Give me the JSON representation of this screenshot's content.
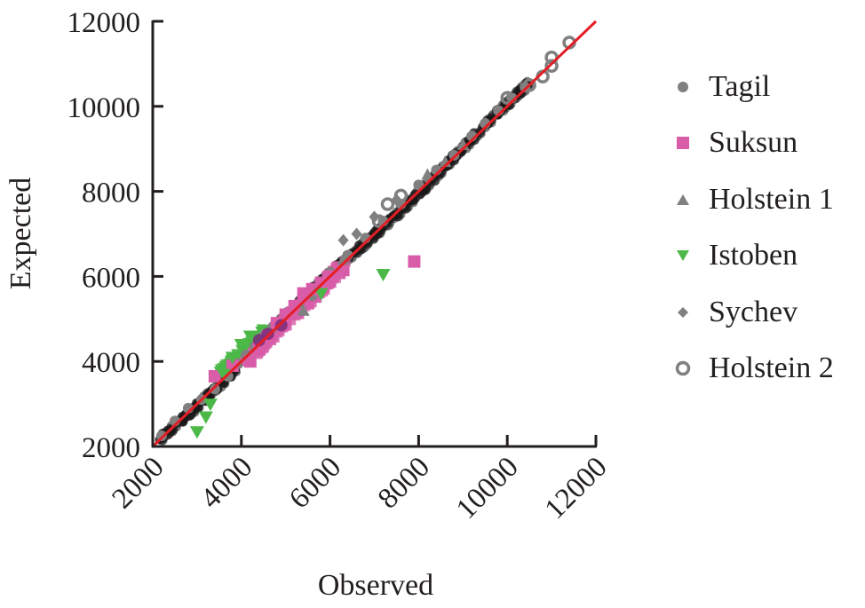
{
  "chart_data": {
    "type": "scatter",
    "title": "",
    "xlabel": "Observed",
    "ylabel": "Expected",
    "xlim": [
      2000,
      12000
    ],
    "ylim": [
      2000,
      12000
    ],
    "x_ticks": [
      "2000",
      "4000",
      "6000",
      "8000",
      "10000",
      "12000"
    ],
    "y_ticks": [
      "2000",
      "4000",
      "6000",
      "8000",
      "10000",
      "12000"
    ],
    "grid": false,
    "legend_position": "right",
    "reference_line": {
      "name": "y = x",
      "color": "#e31e24",
      "from": [
        2000,
        2000
      ],
      "to": [
        12000,
        12000
      ]
    },
    "series": [
      {
        "name": "Tagil",
        "marker": "circle",
        "color": "#808080",
        "points": [
          [
            2200,
            2250
          ],
          [
            2500,
            2600
          ],
          [
            2800,
            2900
          ],
          [
            3100,
            3100
          ],
          [
            3400,
            3350
          ],
          [
            3700,
            3650
          ],
          [
            3900,
            3950
          ],
          [
            4100,
            4150
          ],
          [
            4300,
            4350
          ],
          [
            4500,
            4600
          ],
          [
            4700,
            4800
          ],
          [
            5000,
            5100
          ],
          [
            5300,
            5300
          ],
          [
            5600,
            5550
          ],
          [
            6000,
            6100
          ],
          [
            6400,
            6500
          ],
          [
            6800,
            6900
          ],
          [
            7200,
            7300
          ],
          [
            7600,
            7700
          ],
          [
            8000,
            8150
          ],
          [
            8400,
            8500
          ],
          [
            8800,
            8850
          ],
          [
            9200,
            9300
          ],
          [
            9500,
            9600
          ],
          [
            9800,
            9900
          ],
          [
            10100,
            10200
          ],
          [
            10400,
            10450
          ]
        ]
      },
      {
        "name": "Suksun",
        "marker": "square",
        "color": "#d85ca8",
        "points": [
          [
            3400,
            3650
          ],
          [
            3800,
            3900
          ],
          [
            4200,
            4000
          ],
          [
            4400,
            4300
          ],
          [
            4600,
            4600
          ],
          [
            4800,
            4900
          ],
          [
            5000,
            5100
          ],
          [
            5200,
            5300
          ],
          [
            5400,
            5600
          ],
          [
            5600,
            5700
          ],
          [
            5800,
            5850
          ],
          [
            6000,
            6000
          ],
          [
            6300,
            6150
          ],
          [
            7900,
            6350
          ]
        ]
      },
      {
        "name": "Holstein 1",
        "marker": "triangle-up",
        "color": "#808080",
        "points": [
          [
            5400,
            5200
          ],
          [
            6300,
            6400
          ],
          [
            8200,
            8400
          ],
          [
            8600,
            8700
          ],
          [
            9000,
            9100
          ]
        ]
      },
      {
        "name": "Istoben",
        "marker": "triangle-down",
        "color": "#4bb848",
        "points": [
          [
            3000,
            2350
          ],
          [
            3200,
            2700
          ],
          [
            3300,
            3000
          ],
          [
            3600,
            3700
          ],
          [
            3800,
            4100
          ],
          [
            4000,
            4400
          ],
          [
            4200,
            4600
          ],
          [
            5800,
            5600
          ],
          [
            7200,
            6050
          ]
        ]
      },
      {
        "name": "Sychev",
        "marker": "diamond",
        "color": "#808080",
        "points": [
          [
            6300,
            6850
          ],
          [
            6600,
            7000
          ],
          [
            7000,
            7400
          ],
          [
            7500,
            7800
          ],
          [
            8200,
            8300
          ]
        ]
      },
      {
        "name": "Holstein 2",
        "marker": "circle-open",
        "color": "#808080",
        "points": [
          [
            7100,
            7300
          ],
          [
            7300,
            7700
          ],
          [
            7600,
            7900
          ],
          [
            10000,
            10200
          ],
          [
            10500,
            10500
          ],
          [
            10800,
            10700
          ],
          [
            11000,
            10950
          ],
          [
            11000,
            11150
          ],
          [
            11400,
            11500
          ]
        ]
      }
    ]
  },
  "legend": {
    "items": [
      {
        "label": "Tagil"
      },
      {
        "label": "Suksun"
      },
      {
        "label": "Holstein 1"
      },
      {
        "label": "Istoben"
      },
      {
        "label": "Sychev"
      },
      {
        "label": "Holstein 2"
      }
    ]
  }
}
